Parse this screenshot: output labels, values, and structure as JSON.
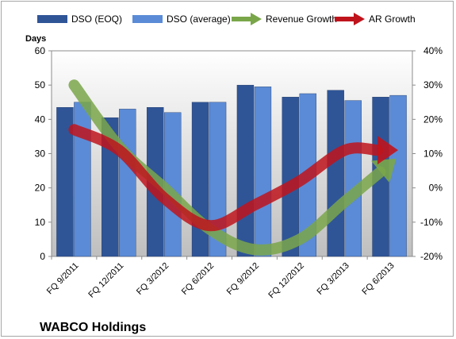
{
  "chart_data": {
    "type": "bar",
    "title": "WABCO Holdings",
    "ylabel": "Days",
    "ylim": [
      0,
      60
    ],
    "yticks": [
      0,
      10,
      20,
      30,
      40,
      50,
      60
    ],
    "y2lim": [
      -20,
      40
    ],
    "y2ticks": [
      "-20%",
      "-10%",
      "0%",
      "10%",
      "20%",
      "30%",
      "40%"
    ],
    "categories": [
      "FQ 9/2011",
      "FQ 12/2011",
      "FQ 3/2012",
      "FQ 6/2012",
      "FQ 9/2012",
      "FQ 12/2012",
      "FQ 3/2013",
      "FQ 6/2013"
    ],
    "series": [
      {
        "name": "DSO (EOQ)",
        "type": "bar",
        "axis": "left",
        "color": "#2f5597",
        "values": [
          43.5,
          40.5,
          43.5,
          45,
          50,
          46.5,
          48.5,
          46.5
        ]
      },
      {
        "name": "DSO (average)",
        "type": "bar",
        "axis": "left",
        "color": "#5b8bd6",
        "values": [
          45,
          43,
          42,
          45,
          49.5,
          47.5,
          45.5,
          47
        ]
      },
      {
        "name": "Revenue Growth",
        "type": "arrow-line",
        "axis": "right",
        "color": "#7aa64a",
        "values": [
          30,
          12,
          0,
          -12,
          -18,
          -15,
          -4,
          7
        ]
      },
      {
        "name": "AR Growth",
        "type": "arrow-line",
        "axis": "right",
        "color": "#c0141c",
        "values": [
          17,
          11,
          -3,
          -11,
          -5,
          2,
          11,
          11
        ]
      }
    ],
    "legend_position": "top",
    "grid": false,
    "plot_background": "gradient"
  }
}
